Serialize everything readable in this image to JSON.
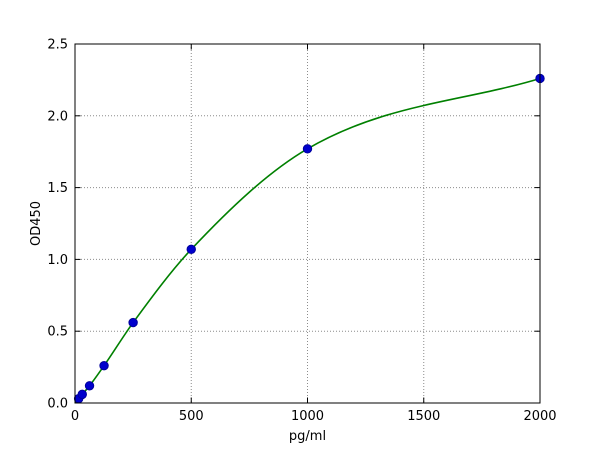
{
  "chart_data": {
    "type": "scatter",
    "title": "",
    "xlabel": "pg/ml",
    "ylabel": "OD450",
    "xlim": [
      0,
      2000
    ],
    "ylim": [
      0.0,
      2.5
    ],
    "xticks": [
      0,
      500,
      1000,
      1500,
      2000
    ],
    "xtick_labels": [
      "0",
      "500",
      "1000",
      "1500",
      "2000"
    ],
    "yticks": [
      0.0,
      0.5,
      1.0,
      1.5,
      2.0,
      2.5
    ],
    "ytick_labels": [
      "0.0",
      "0.5",
      "1.0",
      "1.5",
      "2.0",
      "2.5"
    ],
    "grid": {
      "show": true,
      "linestyle": "dotted",
      "color": "#8c8c8c"
    },
    "legend": {
      "show": false
    },
    "series": [
      {
        "name": "standard-points",
        "type": "scatter",
        "marker": "circle",
        "color": "#0000cd",
        "edge_color": "#00009b",
        "points": [
          [
            15.625,
            0.03
          ],
          [
            31.25,
            0.06
          ],
          [
            62.5,
            0.12
          ],
          [
            125,
            0.26
          ],
          [
            250,
            0.56
          ],
          [
            500,
            1.07
          ],
          [
            1000,
            1.77
          ],
          [
            2000,
            2.26
          ]
        ]
      },
      {
        "name": "fit-curve",
        "type": "smooth-line",
        "color": "#008000",
        "points": [
          [
            0,
            0.0
          ],
          [
            15.625,
            0.03
          ],
          [
            31.25,
            0.06
          ],
          [
            62.5,
            0.12
          ],
          [
            125,
            0.26
          ],
          [
            250,
            0.56
          ],
          [
            500,
            1.07
          ],
          [
            1000,
            1.77
          ],
          [
            2000,
            2.26
          ]
        ]
      }
    ],
    "colors": {
      "axis": "#000000",
      "text": "#000000",
      "background": "#ffffff"
    }
  }
}
